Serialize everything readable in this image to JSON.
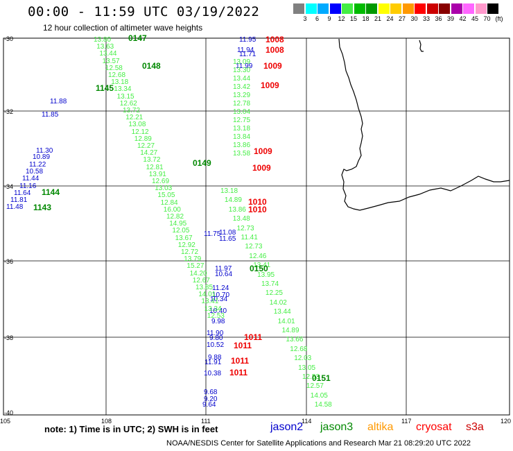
{
  "title": "00:00 - 11:59 UTC 03/19/2022",
  "subtitle": "12 hour collection of altimeter wave heights",
  "legend": {
    "labels": [
      "3",
      "6",
      "9",
      "12",
      "15",
      "18",
      "21",
      "24",
      "27",
      "30",
      "33",
      "36",
      "39",
      "42",
      "45",
      "70",
      "(ft)"
    ],
    "colors": [
      "#808080",
      "#00ffff",
      "#00aaff",
      "#0000ff",
      "#44ee44",
      "#00bb00",
      "#009900",
      "#ffff00",
      "#ffcc00",
      "#ff9900",
      "#ff0000",
      "#cc0000",
      "#880000",
      "#aa00aa",
      "#ff66ff",
      "#ff99cc",
      "#000000"
    ]
  },
  "axes": {
    "lon_ticks": [
      "105",
      "108",
      "111",
      "114",
      "117",
      "120"
    ],
    "lat_ticks": [
      "-30",
      "-32",
      "-34",
      "-36",
      "-38",
      "-40"
    ]
  },
  "note": "note: 1) Time is in UTC; 2) SWH is in feet",
  "missions": [
    {
      "name": "jason2",
      "color": "#0000cc"
    },
    {
      "name": "jason3",
      "color": "#008800"
    },
    {
      "name": "altika",
      "color": "#ff9900"
    },
    {
      "name": "cryosat",
      "color": "#ff0000"
    },
    {
      "name": "s3a",
      "color": "#cc0000"
    }
  ],
  "credit": "NOAA/NESDIS Center for Satellite Applications and Research    Mar 21 08:29:20 UTC 2022",
  "colors": {
    "light_green": "#44ee44",
    "blue": "#0000cc",
    "dark_green": "#008800",
    "red": "#ee0000"
  },
  "tracks": {
    "blue_values": [
      "11.95",
      "11.94",
      "11.71",
      "11.99",
      "11.85",
      "11.88",
      "11.30",
      "10.89",
      "11.22",
      "10.58",
      "11.44",
      "11.16",
      "11.64",
      "11.81",
      "11.48",
      "11.75",
      "11.08",
      "11.65",
      "11.97",
      "10.64",
      "11.24",
      "10.70",
      "10.34",
      "10.40",
      "9.98",
      "11.90",
      "9.80",
      "10.52",
      "9.88",
      "11.91",
      "10.38",
      "9.68",
      "9.20",
      "9.64"
    ],
    "green_values": [
      "13.80",
      "13.63",
      "13.44",
      "13.57",
      "12.58",
      "12.68",
      "13.18",
      "13.34",
      "13.15",
      "12.62",
      "13.72",
      "12.21",
      "13.08",
      "12.12",
      "12.89",
      "12.27",
      "14.27",
      "13.72",
      "12.81",
      "13.91",
      "12.69",
      "13.03",
      "15.05",
      "12.84",
      "16.00",
      "12.82",
      "14.95",
      "12.05",
      "13.67",
      "12.92",
      "12.72",
      "13.79",
      "15.27",
      "14.20",
      "12.67",
      "13.85",
      "14.01",
      "13.41",
      "13.34",
      "12.53",
      "13.09",
      "13.30",
      "13.44",
      "13.42",
      "13.29",
      "12.78",
      "13.04",
      "12.75",
      "13.18",
      "13.84",
      "13.86",
      "13.58",
      "13.18",
      "14.89",
      "13.86",
      "13.48",
      "12.73",
      "11.41",
      "12.73",
      "12.46",
      "13.41",
      "13.95",
      "13.74",
      "12.25",
      "14.02",
      "13.44",
      "14.01",
      "14.89",
      "13.66",
      "12.68",
      "12.03",
      "13.05",
      "12.53",
      "12.57",
      "14.05",
      "14.58"
    ],
    "pass_labels": [
      "0147",
      "0148",
      "1145",
      "0149",
      "1144",
      "1143",
      "0150",
      "0151"
    ],
    "red_values": [
      "1008",
      "1008",
      "1009",
      "1009",
      "1009",
      "1009",
      "1010",
      "1010",
      "1011",
      "1011",
      "1011",
      "1011"
    ]
  }
}
